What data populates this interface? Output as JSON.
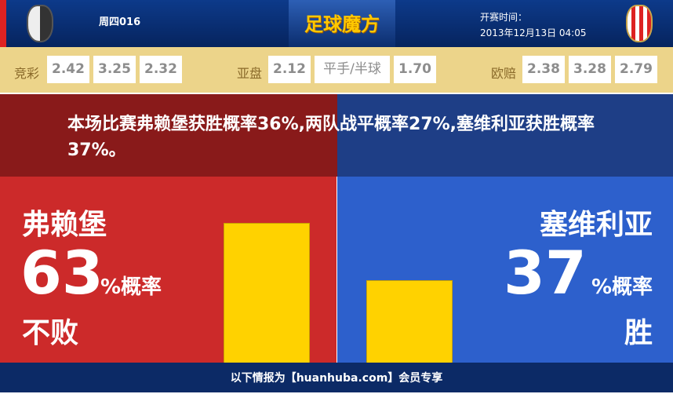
{
  "header": {
    "home_logo": "SC Freiburg crest",
    "away_logo": "Sevilla FC crest",
    "match_code": "周四016",
    "brand": "足球魔方",
    "kickoff_label": "开赛时间：",
    "kickoff_time": "2013年12月13日 04:05"
  },
  "odds": {
    "jingcai": {
      "label": "竞彩",
      "values": [
        "2.42",
        "3.25",
        "2.32"
      ]
    },
    "yapan": {
      "label": "亚盘",
      "values": [
        "2.12",
        "平手/半球",
        "1.70"
      ]
    },
    "oupei": {
      "label": "欧赔",
      "values": [
        "2.38",
        "3.28",
        "2.79"
      ]
    }
  },
  "summary": "本场比赛弗赖堡获胜概率36%,两队战平概率27%,塞维利亚获胜概率37%。",
  "home": {
    "name": "弗赖堡",
    "value": "63",
    "unit": "%概率",
    "outcome": "不败",
    "bar_percent": 63
  },
  "away": {
    "name": "塞维利亚",
    "value": "37",
    "unit": "%概率",
    "outcome": "胜",
    "bar_percent": 37
  },
  "footer": "以下情报为【huanhuba.com】会员专享",
  "colors": {
    "home": "#cc2a2a",
    "away": "#2d60cc",
    "bar": "#ffd200"
  }
}
